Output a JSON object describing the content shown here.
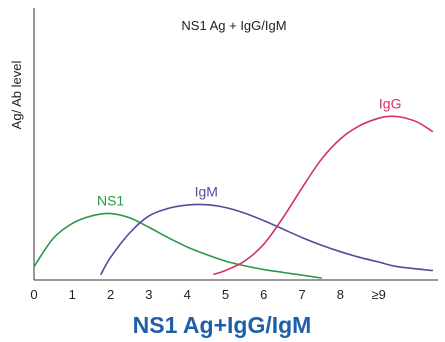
{
  "chart_data": {
    "type": "line",
    "title": "NS1 Ag + IgG/IgM",
    "ylabel": "Ag/ Ab level",
    "xlabel": "",
    "caption": "NS1 Ag+IgG/IgM",
    "x_ticks": [
      "0",
      "1",
      "2",
      "3",
      "4",
      "5",
      "6",
      "7",
      "8",
      "≥9"
    ],
    "xlim": [
      0,
      10.4
    ],
    "ylim": [
      0,
      1
    ],
    "grid": false,
    "legend": "none",
    "series": [
      {
        "name": "NS1",
        "color": "#2a9a4a",
        "x": [
          0,
          0.5,
          1,
          1.5,
          2,
          2.5,
          3,
          3.5,
          4,
          4.5,
          5,
          5.5,
          6,
          6.5,
          7,
          7.5
        ],
        "y": [
          0.06,
          0.21,
          0.29,
          0.33,
          0.343,
          0.32,
          0.27,
          0.215,
          0.165,
          0.125,
          0.09,
          0.065,
          0.045,
          0.03,
          0.015,
          0.0
        ]
      },
      {
        "name": "IgM",
        "color": "#514c9e",
        "x": [
          1.75,
          2.0,
          2.5,
          3,
          3.5,
          4,
          4.5,
          5,
          5.5,
          6,
          6.5,
          7,
          7.5,
          8,
          8.5,
          9,
          9.5,
          10.4
        ],
        "y": [
          0.02,
          0.11,
          0.24,
          0.33,
          0.37,
          0.388,
          0.39,
          0.375,
          0.345,
          0.305,
          0.26,
          0.215,
          0.175,
          0.14,
          0.11,
          0.085,
          0.06,
          0.04
        ]
      },
      {
        "name": "IgG",
        "color": "#d4306a",
        "x": [
          4.7,
          5,
          5.5,
          6,
          6.5,
          7,
          7.5,
          8,
          8.5,
          9,
          9.3,
          9.6,
          10,
          10.4
        ],
        "y": [
          0.02,
          0.04,
          0.09,
          0.18,
          0.32,
          0.48,
          0.63,
          0.74,
          0.81,
          0.85,
          0.86,
          0.855,
          0.83,
          0.78
        ]
      }
    ]
  }
}
